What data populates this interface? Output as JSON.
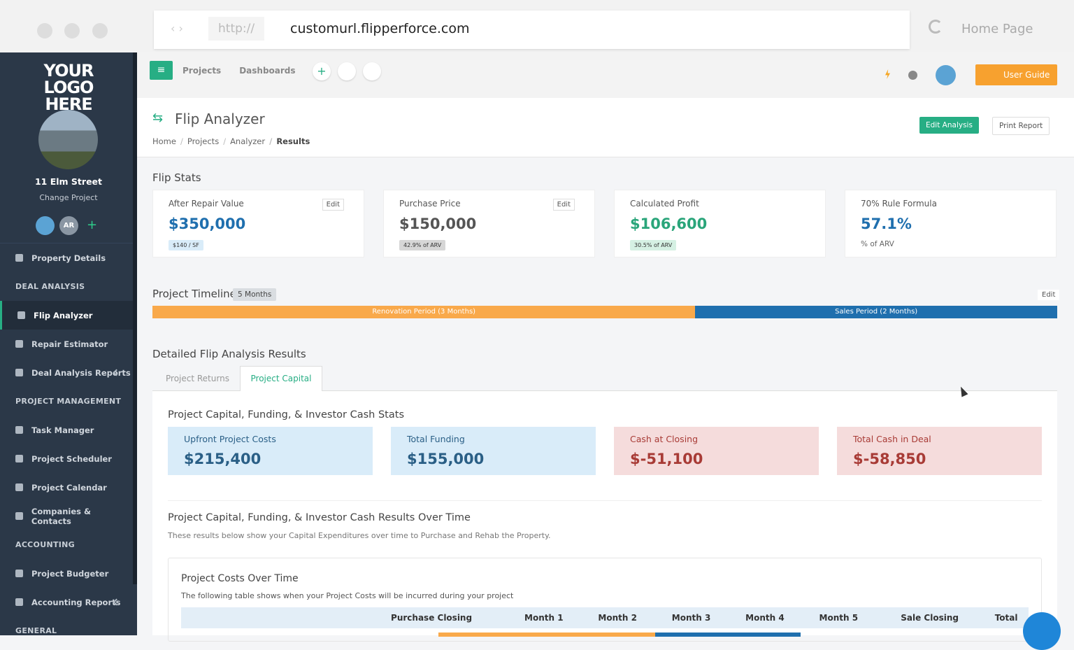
{
  "browser": {
    "scheme": "http://",
    "url": "customurl.flipperforce.com",
    "home": "Home Page"
  },
  "sidebar": {
    "logo": "YOUR LOGO HERE",
    "project": "11 Elm Street",
    "change": "Change Project",
    "avatar_initials": "AR",
    "nav_top": [
      "Property Details"
    ],
    "nav_sections": [
      {
        "heading": "DEAL ANALYSIS",
        "items": [
          "Flip Analyzer",
          "Repair Estimator",
          "Deal Analysis Reports"
        ]
      },
      {
        "heading": "PROJECT MANAGEMENT",
        "items": [
          "Task Manager",
          "Project Scheduler",
          "Project Calendar",
          "Companies & Contacts"
        ]
      },
      {
        "heading": "ACCOUNTING",
        "items": [
          "Project Budgeter",
          "Accounting Reports"
        ]
      },
      {
        "heading": "GENERAL",
        "items": []
      }
    ]
  },
  "topbar": {
    "menus": [
      "Projects",
      "Dashboards"
    ],
    "user_guide": "User Guide"
  },
  "header": {
    "title": "Flip Analyzer",
    "breadcrumbs": [
      "Home",
      "Projects",
      "Analyzer",
      "Results"
    ],
    "edit_button": "Edit Analysis",
    "print_button": "Print Report"
  },
  "flip_stats": {
    "title": "Flip Stats",
    "cards": [
      {
        "label": "After Repair Value",
        "value": "$350,000",
        "badge": "$140 / SF",
        "edit": "Edit",
        "color": "#1f6fae",
        "badge_bg": "#d9ecf9"
      },
      {
        "label": "Purchase Price",
        "value": "$150,000",
        "badge": "42.9% of ARV",
        "edit": "Edit",
        "color": "#555555",
        "badge_bg": "#d6d6d6"
      },
      {
        "label": "Calculated Profit",
        "value": "$106,600",
        "badge": "30.5% of ARV",
        "color": "#2aa57a",
        "badge_bg": "#d5f0e3"
      },
      {
        "label": "70% Rule Formula",
        "value": "57.1%",
        "note": "% of ARV",
        "color": "#1f6fae"
      }
    ]
  },
  "timeline": {
    "title": "Project Timeline",
    "duration": "5 Months",
    "edit": "Edit",
    "phases": [
      "Renovation Period (3 Months)",
      "Sales Period (2 Months)"
    ]
  },
  "results": {
    "title": "Detailed Flip Analysis Results",
    "tabs": [
      "Project Returns",
      "Project Capital"
    ],
    "stats_title": "Project Capital, Funding, & Investor Cash Stats",
    "stats": [
      {
        "label": "Upfront Project Costs",
        "value": "$215,400",
        "bg": "#d9ecf9",
        "color": "#2a5f86"
      },
      {
        "label": "Total Funding",
        "value": "$155,000",
        "bg": "#d9ecf9",
        "color": "#2a5f86"
      },
      {
        "label": "Cash at Closing",
        "value": "$-51,100",
        "bg": "#f5dcdc",
        "color": "#a83b36"
      },
      {
        "label": "Total Cash in Deal",
        "value": "$-58,850",
        "bg": "#f5dcdc",
        "color": "#a83b36"
      }
    ],
    "over_time_title": "Project Capital, Funding, & Investor Cash Results Over Time",
    "over_time_note": "These results below show your Capital Expenditures over time to Purchase and Rehab the Property.",
    "costs": {
      "title": "Project Costs Over Time",
      "note": "The following table shows when your Project Costs will be incurred during your project",
      "columns": [
        "Purchase Closing",
        "Month 1",
        "Month 2",
        "Month 3",
        "Month 4",
        "Month 5",
        "Sale Closing",
        "Total"
      ]
    }
  }
}
